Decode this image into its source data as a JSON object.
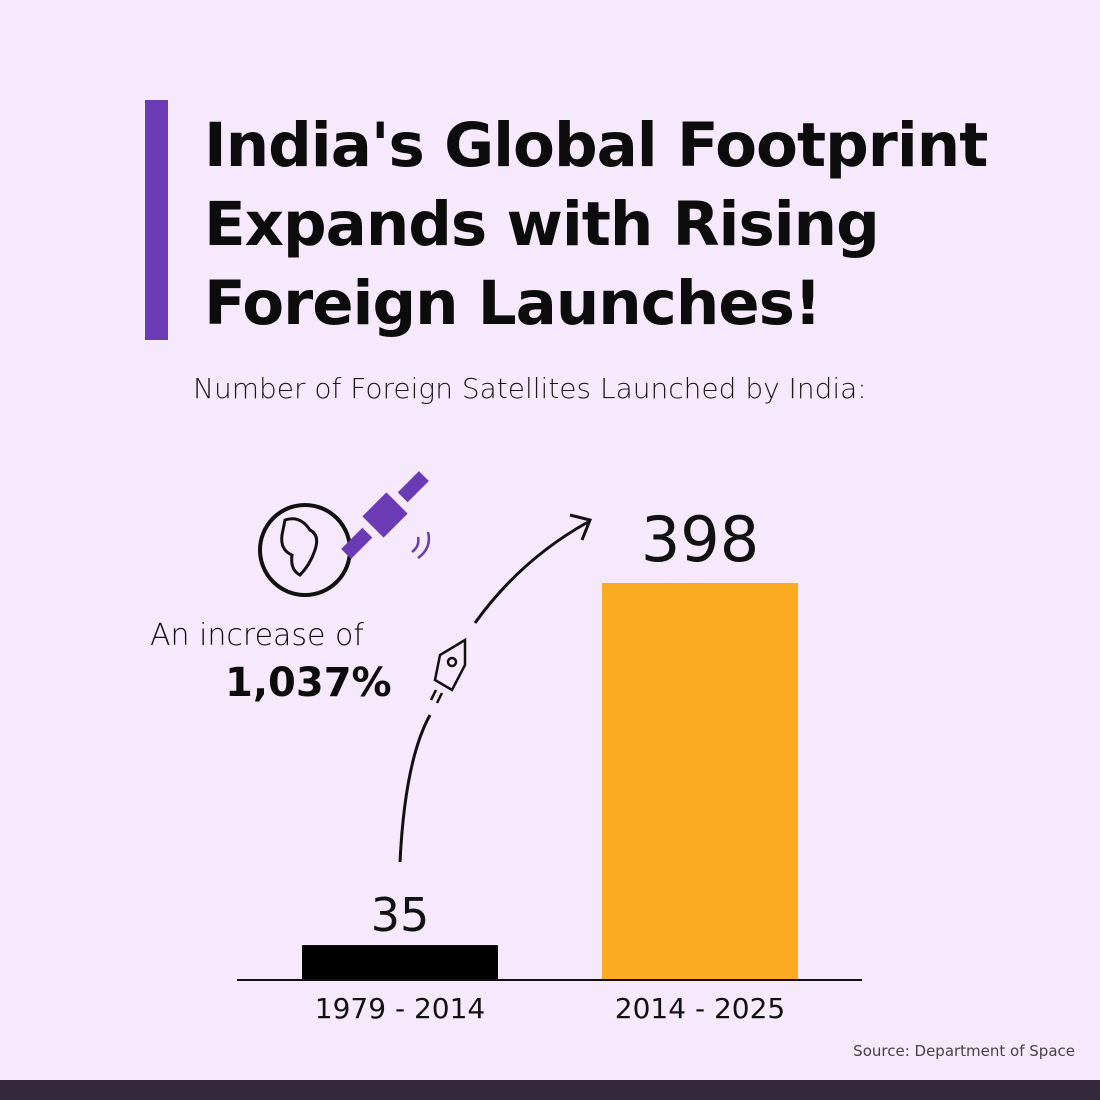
{
  "title": "India's Global Footprint Expands with Rising Foreign Launches!",
  "subtitle": "Number of Foreign Satellites Launched by India:",
  "annotation": {
    "line1": "An increase of",
    "line2": "1,037%"
  },
  "source": "Source: Department of Space",
  "icons": [
    "globe-satellite-icon",
    "rocket-icon",
    "curved-arrow-icon"
  ],
  "colors": {
    "accent": "#6a3bb5",
    "bar_1": "#000000",
    "bar_2": "#fbab1f",
    "background": "#f6e9fb",
    "footer": "#33283a"
  },
  "chart_data": {
    "type": "bar",
    "categories": [
      "1979 - 2014",
      "2014 - 2025"
    ],
    "values": [
      35,
      398
    ],
    "data_labels": [
      "35",
      "398"
    ],
    "colors": [
      "#000000",
      "#fbab1f"
    ],
    "grid": false
  }
}
